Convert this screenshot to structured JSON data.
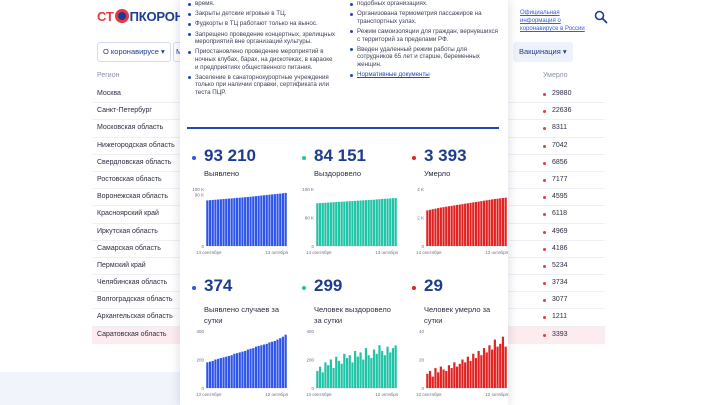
{
  "header": {
    "logo_part1": "СТ",
    "logo_part2": "ПКОРОНАВ",
    "official_link": "Официальная информация о коронавирусе в России"
  },
  "nav": {
    "items": [
      "О коронавирусе ▾",
      "М",
      "Вакцинация ▾"
    ]
  },
  "table": {
    "col_region": "Регион",
    "col_deaths": "Умерло",
    "rows": [
      {
        "region": "Москва",
        "deaths": "29880"
      },
      {
        "region": "Санкт-Петербург",
        "deaths": "22636"
      },
      {
        "region": "Московская область",
        "deaths": "8311"
      },
      {
        "region": "Нижегородская область",
        "deaths": "7042"
      },
      {
        "region": "Свердловская область",
        "deaths": "6856"
      },
      {
        "region": "Ростовская область",
        "deaths": "7177"
      },
      {
        "region": "Воронежская область",
        "deaths": "4595"
      },
      {
        "region": "Красноярский край",
        "deaths": "6118"
      },
      {
        "region": "Иркутская область",
        "deaths": "4969"
      },
      {
        "region": "Самарская область",
        "deaths": "4186"
      },
      {
        "region": "Пермский край",
        "deaths": "5234"
      },
      {
        "region": "Челябинская область",
        "deaths": "3734"
      },
      {
        "region": "Волгоградская область",
        "deaths": "3077"
      },
      {
        "region": "Архангельская область",
        "deaths": "1211"
      },
      {
        "region": "Саратовская область",
        "deaths": "3393"
      }
    ]
  },
  "modal": {
    "left_items": [
      "время.",
      "Закрыты детские игровые в ТЦ.",
      "Фудкорты в ТЦ работают только на вынос.",
      "Запрещено проведение концертных, зрелищных мероприятий вне организаций культуры.",
      "Приостановлено проведение мероприятий в ночных клубах, барах, на дискотеках, в караоке и предприятиях общественного питания.",
      "Заселение в санаторнокурортные учреждения только при наличии справки, сертификата или теста ПЦР."
    ],
    "right_items": [
      "подобных организациях.",
      "Организована термометрия пассажиров на транспортных узлах.",
      "Режим самоизоляции для граждан, вернувшихся с территорий за пределами РФ.",
      "Введен удаленный режим работы для сотрудников 65 лет и старше, беременных женщин."
    ],
    "docs_link": "Нормативные документы"
  },
  "colors": {
    "blue": "#2f55e8",
    "green": "#1fc3a6",
    "red": "#e02424",
    "dark_blue": "#1d3c8f"
  },
  "stats": [
    {
      "value": "93 210",
      "label": "Выявлено",
      "color": "blue"
    },
    {
      "value": "84 151",
      "label": "Выздоровело",
      "color": "green"
    },
    {
      "value": "3 393",
      "label": "Умерло",
      "color": "red"
    },
    {
      "value": "374",
      "label": "Выявлено случаев за сутки",
      "color": "blue"
    },
    {
      "value": "299",
      "label": "Человек выздоровело за сутки",
      "color": "green"
    },
    {
      "value": "29",
      "label": "Человек умерло за сутки",
      "color": "red"
    }
  ],
  "chart_data": [
    {
      "type": "bar",
      "color": "blue",
      "x_start": "14 сентября",
      "x_end": "13 октября",
      "y_ticks": [
        "100 K",
        "90 K",
        "0"
      ],
      "ylim": [
        0,
        100000
      ],
      "values": [
        80000,
        80400,
        80800,
        81200,
        81600,
        82000,
        82400,
        82800,
        83200,
        83600,
        84000,
        84400,
        84800,
        85200,
        85600,
        86000,
        86500,
        87000,
        87500,
        88000,
        88500,
        89000,
        89500,
        90000,
        90500,
        91000,
        91500,
        92000,
        92600,
        93210
      ]
    },
    {
      "type": "bar",
      "color": "green",
      "x_start": "14 сентября",
      "x_end": "13 октября",
      "y_ticks": [
        "100 K",
        "80 K",
        "0"
      ],
      "ylim": [
        0,
        100000
      ],
      "values": [
        75000,
        75300,
        75600,
        75900,
        76200,
        76500,
        76800,
        77100,
        77400,
        77700,
        78000,
        78300,
        78600,
        78900,
        79200,
        79500,
        79800,
        80100,
        80400,
        80700,
        81000,
        81300,
        81700,
        82100,
        82500,
        82900,
        83200,
        83500,
        83800,
        84151
      ]
    },
    {
      "type": "bar",
      "color": "red",
      "x_start": "14 сентября",
      "x_end": "13 октября",
      "y_ticks": [
        "4 K",
        "2 K",
        "0"
      ],
      "ylim": [
        0,
        4000
      ],
      "values": [
        2500,
        2540,
        2580,
        2620,
        2660,
        2700,
        2730,
        2760,
        2790,
        2820,
        2850,
        2880,
        2910,
        2940,
        2970,
        3000,
        3030,
        3060,
        3090,
        3120,
        3150,
        3180,
        3210,
        3240,
        3270,
        3300,
        3320,
        3345,
        3370,
        3393
      ]
    },
    {
      "type": "bar",
      "color": "blue",
      "x_start": "13 сентября",
      "x_end": "12 октября",
      "y_ticks": [
        "400",
        "200",
        "0"
      ],
      "ylim": [
        0,
        400
      ],
      "values": [
        180,
        185,
        190,
        200,
        205,
        210,
        215,
        220,
        225,
        230,
        240,
        245,
        250,
        255,
        260,
        270,
        275,
        280,
        290,
        295,
        300,
        305,
        310,
        320,
        325,
        330,
        340,
        350,
        360,
        374
      ]
    },
    {
      "type": "bar",
      "color": "green",
      "x_start": "13 сентября",
      "x_end": "12 октября",
      "y_ticks": [
        "400",
        "200",
        "0"
      ],
      "ylim": [
        0,
        400
      ],
      "values": [
        120,
        150,
        110,
        180,
        160,
        200,
        140,
        220,
        190,
        170,
        240,
        210,
        230,
        180,
        260,
        220,
        250,
        200,
        280,
        230,
        210,
        270,
        240,
        300,
        260,
        230,
        290,
        250,
        280,
        299
      ]
    },
    {
      "type": "bar",
      "color": "red",
      "x_start": "13 сентября",
      "x_end": "12 октября",
      "y_ticks": [
        "40",
        "20",
        "0"
      ],
      "ylim": [
        0,
        40
      ],
      "values": [
        10,
        12,
        8,
        14,
        11,
        15,
        13,
        12,
        16,
        14,
        18,
        15,
        17,
        20,
        18,
        22,
        19,
        24,
        21,
        26,
        23,
        28,
        25,
        30,
        27,
        34,
        29,
        31,
        36,
        29
      ]
    }
  ]
}
